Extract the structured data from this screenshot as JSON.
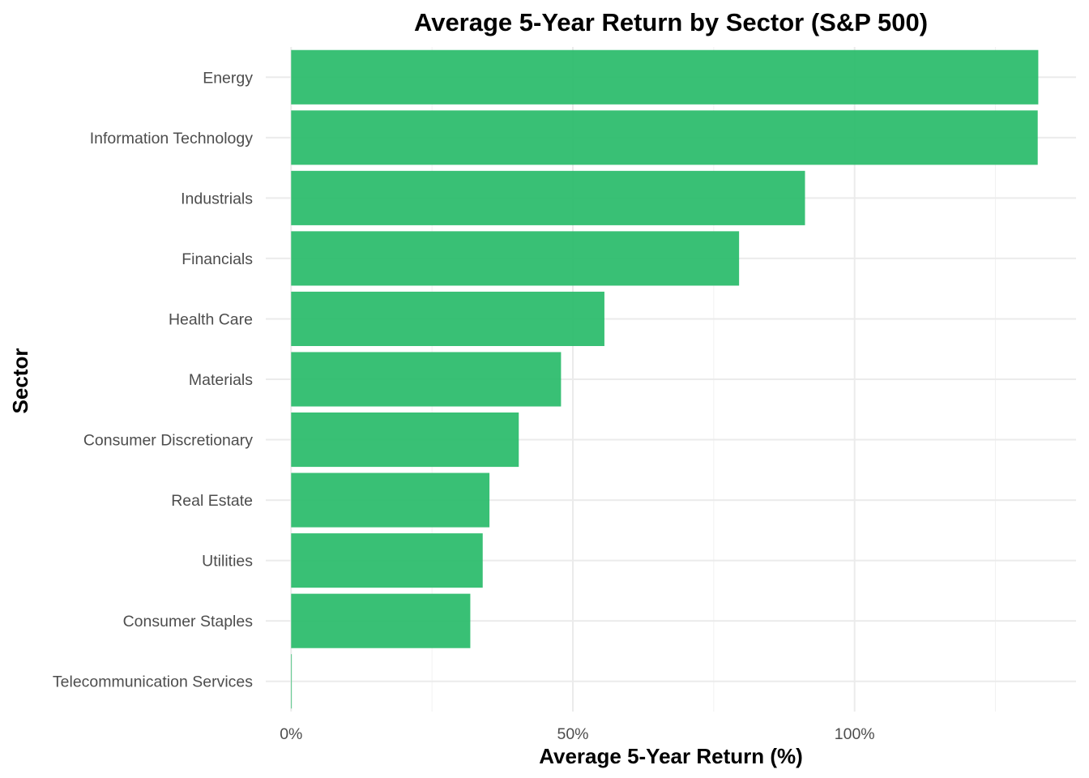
{
  "chart_data": {
    "type": "bar",
    "orientation": "horizontal",
    "title": "Average 5-Year Return by Sector (S&P 500)",
    "xlabel": "Average 5-Year Return (%)",
    "ylabel": "Sector",
    "categories": [
      "Energy",
      "Information Technology",
      "Industrials",
      "Financials",
      "Health Care",
      "Materials",
      "Consumer Discretionary",
      "Real Estate",
      "Utilities",
      "Consumer Staples",
      "Telecommunication Services"
    ],
    "values": [
      132.6,
      132.5,
      91.2,
      79.5,
      55.6,
      47.9,
      40.4,
      35.2,
      34.0,
      31.8,
      0.1
    ],
    "xlim": [
      -4.5,
      139.3
    ],
    "x_ticks": [
      0,
      50,
      100
    ],
    "x_tick_labels": [
      "0%",
      "50%",
      "100%"
    ],
    "grid": true,
    "legend": "none",
    "bar_color": "#2ebd6e"
  }
}
